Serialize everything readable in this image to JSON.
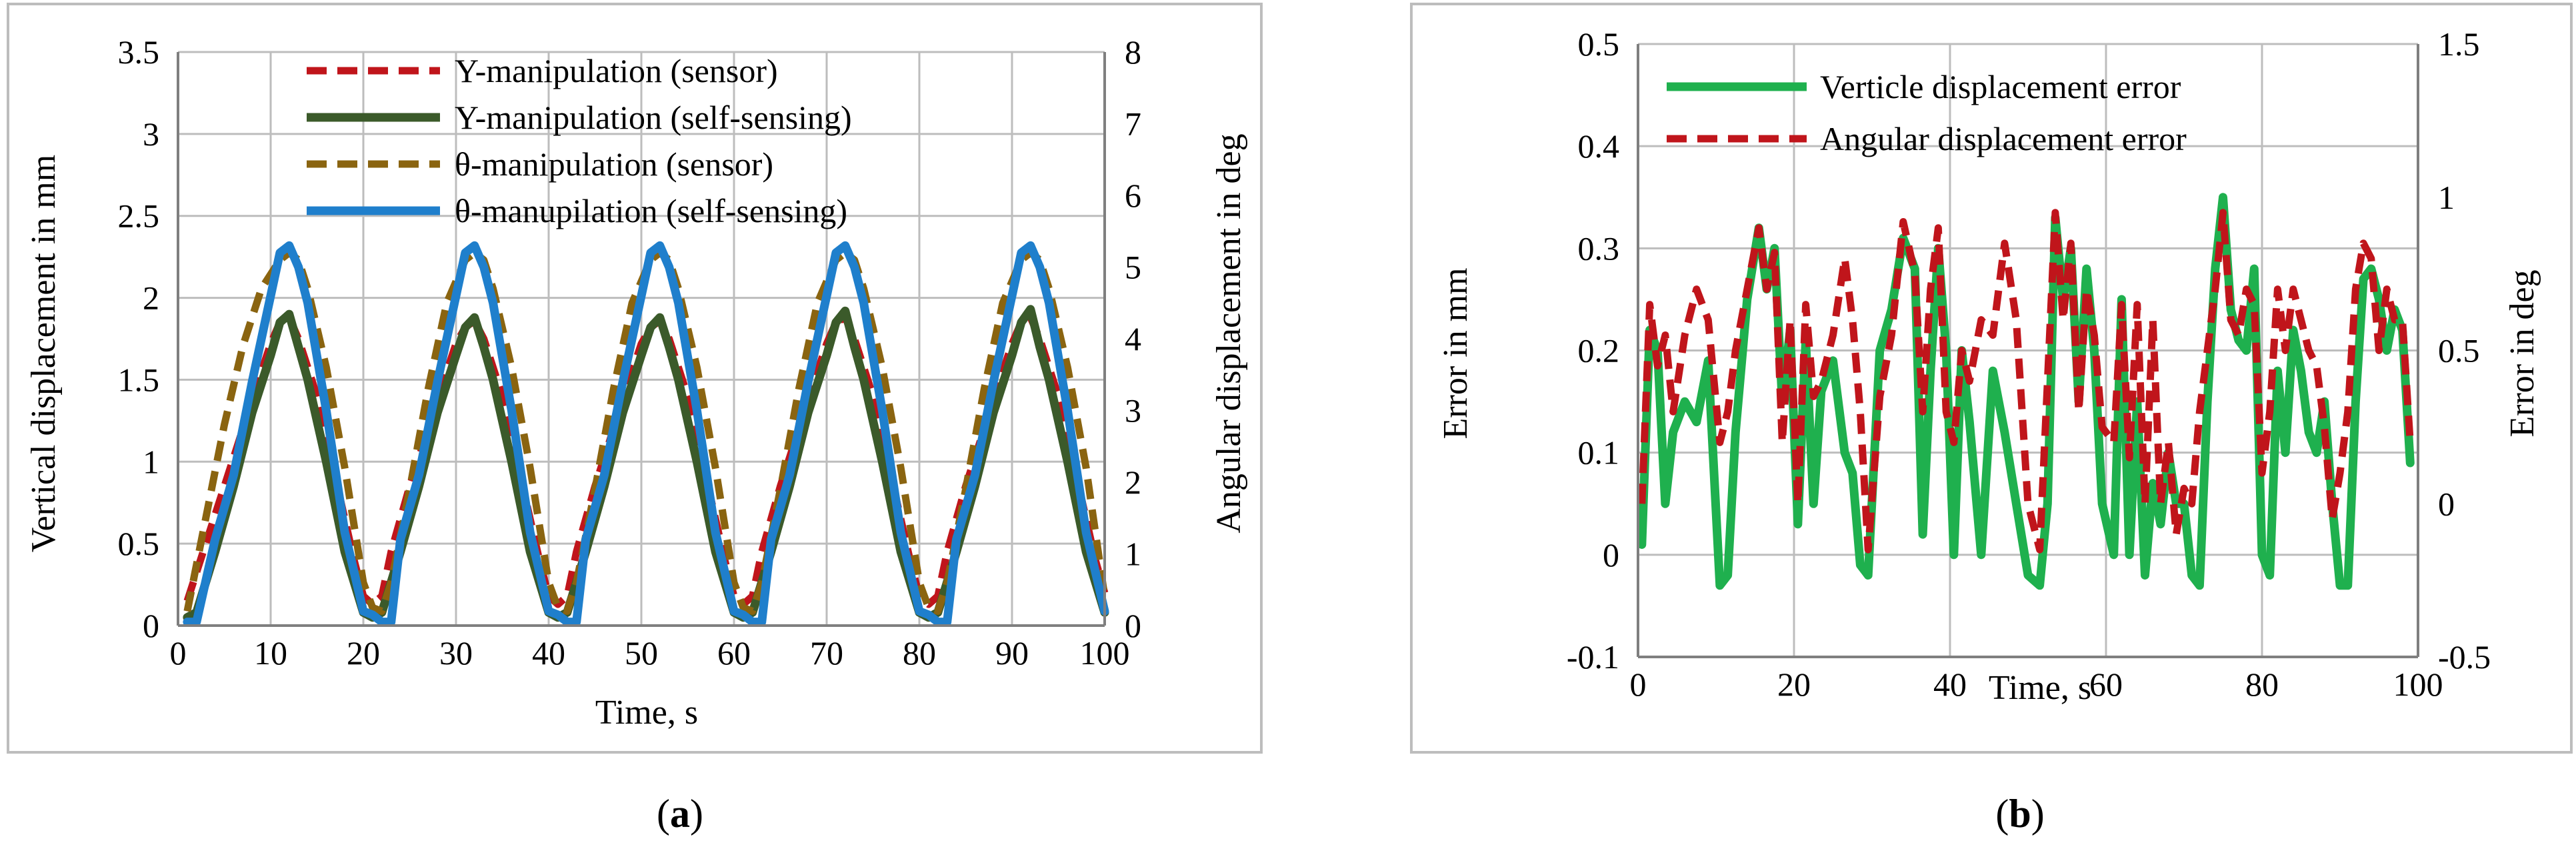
{
  "panel_labels": [
    {
      "open": "(",
      "letter": "a",
      "close": ")"
    },
    {
      "open": "(",
      "letter": "b",
      "close": ")"
    }
  ],
  "colors": {
    "y_sensor": "#c0151b",
    "y_self": "#3b5a2a",
    "t_sensor": "#8a6410",
    "t_self": "#1f7fcc",
    "vert_err": "#1fb04e",
    "ang_err": "#c0151b",
    "grid": "#bdbdbd",
    "frame": "#bdbdbd",
    "axis": "#7f7f7f"
  },
  "chart_data": [
    {
      "type": "line",
      "title": "",
      "xlabel": "Time, s",
      "ylabel": "Vertical displacement in mm",
      "y2label": "Angular displacement in deg",
      "xlim": [
        0,
        100
      ],
      "ylim": [
        0,
        3.5
      ],
      "y2lim": [
        0,
        8
      ],
      "xticks": [
        "0",
        "10",
        "20",
        "30",
        "40",
        "50",
        "60",
        "70",
        "80",
        "90",
        "100"
      ],
      "yticks": [
        "0",
        "0.5",
        "1",
        "1.5",
        "2",
        "2.5",
        "3",
        "3.5"
      ],
      "y2ticks": [
        "0",
        "1",
        "2",
        "3",
        "4",
        "5",
        "6",
        "7",
        "8"
      ],
      "legend_position": "top-center",
      "grid": true,
      "series": [
        {
          "name": "Y-manipulation (sensor)",
          "axis": "left",
          "style": "dashed",
          "color_key": "y_sensor",
          "x": [
            1,
            3,
            5,
            7,
            9,
            10,
            11,
            12,
            13,
            15,
            17,
            19,
            20,
            21,
            22,
            23,
            25,
            27,
            29,
            30,
            31,
            32,
            33,
            35,
            37,
            39,
            40,
            41,
            42,
            43,
            45,
            47,
            49,
            50,
            51,
            52,
            53,
            55,
            57,
            59,
            60,
            61,
            62,
            63,
            65,
            67,
            69,
            70,
            71,
            72,
            73,
            75,
            77,
            79,
            80,
            81,
            82,
            83,
            85,
            87,
            89,
            90,
            91,
            92,
            93,
            95,
            97,
            99,
            100
          ],
          "y": [
            0.15,
            0.5,
            0.85,
            1.2,
            1.55,
            1.72,
            1.85,
            1.88,
            1.75,
            1.4,
            0.9,
            0.4,
            0.18,
            0.13,
            0.18,
            0.45,
            0.85,
            1.2,
            1.55,
            1.72,
            1.82,
            1.86,
            1.75,
            1.4,
            0.9,
            0.4,
            0.18,
            0.13,
            0.18,
            0.45,
            0.85,
            1.2,
            1.55,
            1.72,
            1.82,
            1.86,
            1.75,
            1.4,
            0.9,
            0.4,
            0.18,
            0.13,
            0.18,
            0.45,
            0.85,
            1.2,
            1.55,
            1.72,
            1.85,
            1.88,
            1.75,
            1.4,
            0.9,
            0.4,
            0.18,
            0.13,
            0.18,
            0.45,
            0.85,
            1.2,
            1.55,
            1.72,
            1.85,
            1.88,
            1.75,
            1.4,
            0.9,
            0.4,
            0.2
          ]
        },
        {
          "name": "Y-manipulation (self-sensing)",
          "axis": "left",
          "style": "solid",
          "color_key": "y_self",
          "x": [
            1,
            2,
            4,
            6,
            8,
            10,
            11,
            12,
            13,
            14,
            16,
            18,
            20,
            21,
            22,
            24,
            26,
            28,
            30,
            31,
            32,
            33,
            34,
            36,
            38,
            40,
            41,
            42,
            44,
            46,
            48,
            50,
            51,
            52,
            53,
            54,
            56,
            58,
            60,
            61,
            62,
            64,
            66,
            68,
            70,
            71,
            72,
            73,
            74,
            76,
            78,
            80,
            81,
            82,
            84,
            86,
            88,
            90,
            91,
            92,
            93,
            94,
            96,
            98,
            100
          ],
          "y": [
            0.05,
            0.08,
            0.45,
            0.85,
            1.3,
            1.65,
            1.85,
            1.9,
            1.7,
            1.5,
            1.0,
            0.45,
            0.08,
            0.05,
            0.08,
            0.45,
            0.85,
            1.3,
            1.65,
            1.82,
            1.88,
            1.7,
            1.5,
            1.0,
            0.45,
            0.08,
            0.05,
            0.08,
            0.45,
            0.85,
            1.3,
            1.65,
            1.82,
            1.88,
            1.7,
            1.5,
            1.0,
            0.45,
            0.08,
            0.05,
            0.08,
            0.45,
            0.85,
            1.3,
            1.65,
            1.85,
            1.92,
            1.7,
            1.5,
            1.0,
            0.45,
            0.08,
            0.05,
            0.08,
            0.45,
            0.85,
            1.3,
            1.65,
            1.85,
            1.93,
            1.7,
            1.5,
            1.0,
            0.45,
            0.08
          ]
        },
        {
          "name": "θ-manipulation (sensor)",
          "axis": "right",
          "style": "dashed",
          "color_key": "t_sensor",
          "x": [
            1,
            3,
            5,
            7,
            9,
            11,
            12,
            13,
            14,
            16,
            18,
            20,
            21,
            22,
            23,
            25,
            27,
            29,
            31,
            32,
            33,
            34,
            36,
            38,
            40,
            41,
            42,
            43,
            45,
            47,
            49,
            51,
            52,
            53,
            54,
            56,
            58,
            60,
            61,
            62,
            63,
            65,
            67,
            69,
            71,
            72,
            73,
            74,
            76,
            78,
            80,
            81,
            82,
            83,
            85,
            87,
            89,
            91,
            92,
            93,
            94,
            96,
            98,
            100
          ],
          "y": [
            0.2,
            1.5,
            2.8,
            3.9,
            4.7,
            5.1,
            5.2,
            5.1,
            4.7,
            3.6,
            2.2,
            0.6,
            0.25,
            0.2,
            0.6,
            1.9,
            3.3,
            4.5,
            5.1,
            5.2,
            5.1,
            4.7,
            3.6,
            2.2,
            0.6,
            0.25,
            0.2,
            0.6,
            1.9,
            3.3,
            4.5,
            5.1,
            5.2,
            5.1,
            4.7,
            3.6,
            2.2,
            0.6,
            0.25,
            0.2,
            0.6,
            1.9,
            3.3,
            4.5,
            5.1,
            5.2,
            5.1,
            4.7,
            3.6,
            2.2,
            0.6,
            0.25,
            0.2,
            0.6,
            1.9,
            3.3,
            4.5,
            5.1,
            5.2,
            5.1,
            4.7,
            3.6,
            2.2,
            0.4
          ]
        },
        {
          "name": "θ-manupilation (self-sensing)",
          "axis": "right",
          "style": "solid",
          "color_key": "t_self",
          "x": [
            1,
            2,
            4,
            6,
            8,
            10,
            11,
            12,
            13,
            14,
            16,
            18,
            20,
            21,
            22,
            23,
            24,
            26,
            28,
            30,
            31,
            32,
            33,
            34,
            36,
            38,
            40,
            41,
            42,
            43,
            44,
            46,
            48,
            50,
            51,
            52,
            53,
            54,
            56,
            58,
            60,
            61,
            62,
            63,
            64,
            66,
            68,
            70,
            71,
            72,
            73,
            74,
            76,
            78,
            80,
            81,
            82,
            83,
            84,
            86,
            88,
            90,
            91,
            92,
            93,
            94,
            96,
            98,
            100
          ],
          "y": [
            0.05,
            0.05,
            1.2,
            2.1,
            3.4,
            4.6,
            5.2,
            5.3,
            5.0,
            4.5,
            3.0,
            1.3,
            0.2,
            0.15,
            0.05,
            0.05,
            1.2,
            2.1,
            3.4,
            4.6,
            5.2,
            5.3,
            5.0,
            4.5,
            3.0,
            1.3,
            0.2,
            0.15,
            0.05,
            0.05,
            1.2,
            2.1,
            3.4,
            4.6,
            5.2,
            5.3,
            5.0,
            4.5,
            3.0,
            1.3,
            0.2,
            0.15,
            0.05,
            0.05,
            1.2,
            2.1,
            3.4,
            4.6,
            5.2,
            5.3,
            5.0,
            4.5,
            3.0,
            1.3,
            0.2,
            0.15,
            0.05,
            0.05,
            1.2,
            2.1,
            3.4,
            4.6,
            5.2,
            5.3,
            5.0,
            4.5,
            3.0,
            1.3,
            0.2
          ]
        }
      ]
    },
    {
      "type": "line",
      "title": "",
      "xlabel": "Time, s",
      "ylabel": "Error in mm",
      "y2label": "Error in deg",
      "xlim": [
        0,
        100
      ],
      "ylim": [
        -0.1,
        0.5
      ],
      "y2lim": [
        -0.5,
        1.5
      ],
      "xticks": [
        "0",
        "20",
        "40",
        "60",
        "80",
        "100"
      ],
      "yticks": [
        "-0.1",
        "0",
        "0.1",
        "0.2",
        "0.3",
        "0.4",
        "0.5"
      ],
      "y2ticks": [
        "-0.5",
        "0",
        "0.5",
        "1",
        "1.5"
      ],
      "legend_position": "top-left",
      "grid": true,
      "series": [
        {
          "name": "Verticle displacement error",
          "axis": "left",
          "style": "solid",
          "color_key": "vert_err",
          "x": [
            0.5,
            1.5,
            2.5,
            3.5,
            4.5,
            6,
            7.5,
            9,
            10.5,
            11.5,
            12.5,
            14,
            15.5,
            16.5,
            17.5,
            18.5,
            19.5,
            20.5,
            21.5,
            22.5,
            23.5,
            25,
            26.5,
            27.5,
            28.5,
            29.5,
            31,
            32.5,
            34,
            35.5,
            36.5,
            37.5,
            38.5,
            39.5,
            40.5,
            41.5,
            42.5,
            44,
            45.5,
            47,
            48.5,
            50,
            51.5,
            52.5,
            53.5,
            54.5,
            55.5,
            56.5,
            57.5,
            58.5,
            59.5,
            61,
            62,
            63,
            64,
            65,
            66,
            67,
            68,
            69,
            70,
            71,
            72,
            73,
            74,
            75,
            76,
            77,
            78,
            79,
            80,
            81,
            82,
            83,
            84,
            85,
            86,
            87,
            88,
            89,
            90,
            91,
            92,
            93,
            94,
            95,
            96,
            97,
            98,
            99
          ],
          "y": [
            0.01,
            0.22,
            0.2,
            0.05,
            0.12,
            0.15,
            0.13,
            0.19,
            -0.03,
            -0.02,
            0.12,
            0.25,
            0.32,
            0.26,
            0.3,
            0.15,
            0.22,
            0.03,
            0.21,
            0.05,
            0.16,
            0.19,
            0.1,
            0.08,
            -0.01,
            -0.02,
            0.2,
            0.24,
            0.31,
            0.28,
            0.02,
            0.18,
            0.3,
            0.2,
            0.0,
            0.2,
            0.13,
            0.0,
            0.18,
            0.12,
            0.05,
            -0.02,
            -0.03,
            0.05,
            0.33,
            0.25,
            0.3,
            0.15,
            0.28,
            0.2,
            0.05,
            0.0,
            0.25,
            0.0,
            0.15,
            -0.02,
            0.07,
            0.03,
            0.1,
            0.05,
            0.05,
            -0.02,
            -0.03,
            0.15,
            0.28,
            0.35,
            0.24,
            0.21,
            0.2,
            0.28,
            0.0,
            -0.02,
            0.18,
            0.1,
            0.22,
            0.18,
            0.12,
            0.1,
            0.15,
            0.05,
            -0.03,
            -0.03,
            0.15,
            0.27,
            0.28,
            0.25,
            0.2,
            0.24,
            0.22,
            0.09
          ]
        },
        {
          "name": "Angular displacement error",
          "axis": "right",
          "style": "dashed",
          "color_key": "ang_err",
          "x": [
            0.5,
            1.5,
            2.5,
            3.5,
            4.5,
            6,
            7.5,
            9,
            10.5,
            11.5,
            12.5,
            14,
            15.5,
            16.5,
            17.5,
            18.5,
            19.5,
            20.5,
            21.5,
            22.5,
            23.5,
            25,
            26.5,
            27.5,
            28.5,
            29.5,
            31,
            32.5,
            34,
            35.5,
            36.5,
            37.5,
            38.5,
            39.5,
            40.5,
            41.5,
            42.5,
            44,
            45.5,
            47,
            48.5,
            50,
            51.5,
            52.5,
            53.5,
            54.5,
            55.5,
            56.5,
            57.5,
            58.5,
            59.5,
            61,
            62,
            63,
            64,
            65,
            66,
            67,
            68,
            69,
            70,
            71,
            72,
            73,
            74,
            75,
            76,
            77,
            78,
            79,
            80,
            81,
            82,
            83,
            84,
            85,
            86,
            87,
            88,
            89,
            90,
            91,
            92,
            93,
            94,
            95,
            96,
            97,
            98,
            99
          ],
          "y": [
            0.0,
            0.65,
            0.45,
            0.55,
            0.3,
            0.55,
            0.7,
            0.6,
            0.2,
            0.3,
            0.5,
            0.7,
            0.9,
            0.7,
            0.82,
            0.2,
            0.6,
            0.0,
            0.65,
            0.35,
            0.4,
            0.55,
            0.8,
            0.6,
            0.3,
            -0.15,
            0.35,
            0.55,
            0.92,
            0.75,
            0.3,
            0.7,
            0.9,
            0.3,
            0.2,
            0.5,
            0.4,
            0.6,
            0.55,
            0.85,
            0.6,
            0.0,
            -0.15,
            0.4,
            0.95,
            0.6,
            0.85,
            0.3,
            0.7,
            0.55,
            0.25,
            0.2,
            0.65,
            0.15,
            0.65,
            0.0,
            0.6,
            0.0,
            0.2,
            -0.1,
            0.05,
            0.0,
            0.3,
            0.5,
            0.7,
            0.95,
            0.6,
            0.55,
            0.7,
            0.65,
            0.1,
            0.3,
            0.7,
            0.5,
            0.7,
            0.6,
            0.5,
            0.45,
            0.25,
            -0.05,
            0.1,
            0.3,
            0.7,
            0.85,
            0.8,
            0.5,
            0.7,
            0.6,
            0.6,
            0.2
          ]
        }
      ]
    }
  ]
}
